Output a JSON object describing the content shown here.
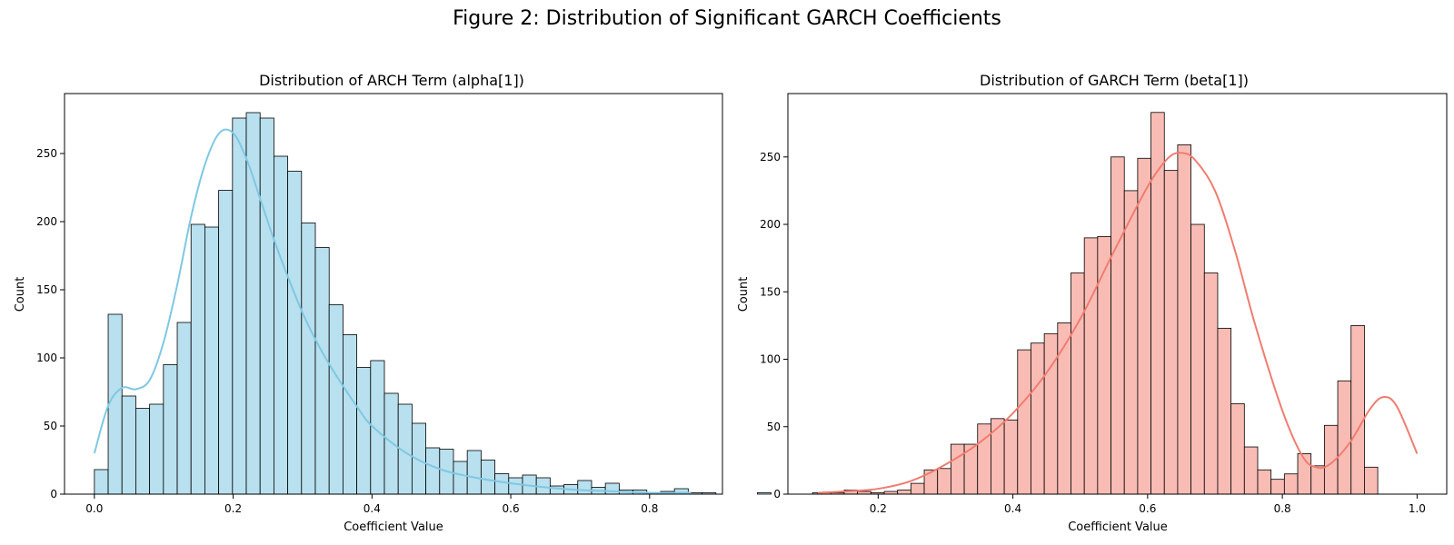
{
  "figure_title": "Figure 2: Distribution of Significant GARCH Coefficients",
  "chart_data": [
    {
      "type": "bar",
      "title": "Distribution of ARCH Term (alpha[1])",
      "xlabel": "Coefficient Value",
      "ylabel": "Count",
      "xlim": [
        -0.043,
        0.905
      ],
      "ylim": [
        0,
        294
      ],
      "xticks": [
        "0.0",
        "0.2",
        "0.4",
        "0.6",
        "0.8"
      ],
      "yticks": [
        "0",
        "50",
        "100",
        "150",
        "200",
        "250"
      ],
      "bar_color": "#b9e0ee",
      "kde_color": "#7ec8e3",
      "bins": {
        "start": 0.0,
        "width": 0.0199,
        "counts": [
          18,
          132,
          72,
          63,
          66,
          95,
          126,
          198,
          196,
          223,
          276,
          280,
          276,
          248,
          237,
          199,
          181,
          139,
          117,
          93,
          98,
          74,
          66,
          52,
          34,
          33,
          24,
          32,
          25,
          15,
          12,
          14,
          12,
          6,
          7,
          10,
          5,
          8,
          3,
          3,
          1,
          2,
          4,
          1,
          1,
          0,
          0,
          0,
          1,
          0,
          0,
          0,
          1
        ]
      },
      "kde": {
        "x": [
          0.0,
          0.02,
          0.04,
          0.06,
          0.08,
          0.1,
          0.12,
          0.14,
          0.16,
          0.18,
          0.2,
          0.22,
          0.24,
          0.26,
          0.28,
          0.3,
          0.32,
          0.34,
          0.36,
          0.38,
          0.4,
          0.45,
          0.5,
          0.55,
          0.6,
          0.65,
          0.7,
          0.75,
          0.8,
          0.86
        ],
        "y": [
          30,
          65,
          78,
          77,
          84,
          112,
          155,
          205,
          243,
          265,
          265,
          245,
          215,
          185,
          158,
          133,
          112,
          94,
          78,
          63,
          50,
          30,
          18,
          12,
          8,
          5,
          3,
          2,
          1,
          1
        ]
      }
    },
    {
      "type": "bar",
      "title": "Distribution of GARCH Term (beta[1])",
      "xlabel": "Coefficient Value",
      "ylabel": "Count",
      "xlim": [
        0.066,
        1.044
      ],
      "ylim": [
        0,
        297
      ],
      "xticks": [
        "0.2",
        "0.4",
        "0.6",
        "0.8",
        "1.0"
      ],
      "yticks": [
        "0",
        "50",
        "100",
        "150",
        "200",
        "250"
      ],
      "bar_color": "#f9bcb5",
      "kde_color": "#f07c70",
      "bins": {
        "start": 0.11,
        "width": 0.0198,
        "counts": [
          1,
          1,
          3,
          2,
          1,
          2,
          3,
          8,
          18,
          19,
          37,
          37,
          52,
          56,
          55,
          107,
          112,
          119,
          127,
          164,
          190,
          191,
          250,
          225,
          249,
          283,
          240,
          259,
          200,
          164,
          123,
          67,
          35,
          18,
          11,
          15,
          30,
          21,
          51,
          84,
          125,
          20
        ]
      },
      "kde": {
        "x": [
          0.11,
          0.15,
          0.2,
          0.25,
          0.3,
          0.35,
          0.4,
          0.45,
          0.5,
          0.55,
          0.6,
          0.63,
          0.65,
          0.67,
          0.7,
          0.73,
          0.76,
          0.8,
          0.83,
          0.85,
          0.87,
          0.9,
          0.93,
          0.95,
          0.97,
          1.0
        ],
        "y": [
          1,
          2,
          4,
          10,
          22,
          38,
          60,
          90,
          130,
          180,
          228,
          249,
          253,
          248,
          225,
          180,
          125,
          62,
          28,
          20,
          22,
          38,
          63,
          72,
          65,
          30
        ]
      }
    }
  ]
}
